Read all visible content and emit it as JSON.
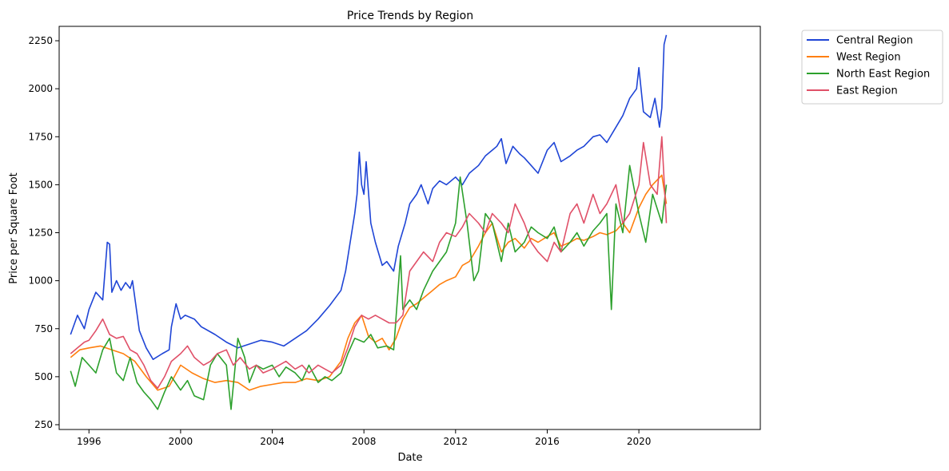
{
  "chart_data": {
    "type": "line",
    "title": "Price Trends by Region",
    "xlabel": "Date",
    "ylabel": "Price per Square Foot",
    "xlim": [
      1994.7,
      2025.3
    ],
    "ylim": [
      225,
      2325
    ],
    "x_ticks": [
      1996,
      2000,
      2004,
      2008,
      2012,
      2016,
      2020
    ],
    "x_tick_labels": [
      "1996",
      "2000",
      "2004",
      "2008",
      "2012",
      "2016",
      "2020"
    ],
    "y_ticks": [
      250,
      500,
      750,
      1000,
      1250,
      1500,
      1750,
      2000,
      2250
    ],
    "y_tick_labels": [
      "250",
      "500",
      "750",
      "1000",
      "1250",
      "1500",
      "1750",
      "2000",
      "2250"
    ],
    "grid": false,
    "legend": "outside top-right",
    "series": [
      {
        "name": "Central Region",
        "color": "#1f45d6",
        "x": [
          1995.2,
          1995.5,
          1995.8,
          1996.0,
          1996.3,
          1996.6,
          1996.8,
          1996.9,
          1997.0,
          1997.2,
          1997.4,
          1997.6,
          1997.8,
          1997.9,
          1998.2,
          1998.5,
          1998.8,
          1999.2,
          1999.5,
          1999.6,
          1999.8,
          2000.0,
          2000.2,
          2000.6,
          2000.9,
          2001.5,
          2002.0,
          2002.5,
          2003.0,
          2003.5,
          2004.0,
          2004.5,
          2005.0,
          2005.5,
          2006.0,
          2006.5,
          2007.0,
          2007.2,
          2007.4,
          2007.6,
          2007.7,
          2007.8,
          2007.9,
          2008.0,
          2008.1,
          2008.3,
          2008.5,
          2008.8,
          2009.0,
          2009.3,
          2009.5,
          2009.8,
          2010.0,
          2010.3,
          2010.5,
          2010.8,
          2011.0,
          2011.3,
          2011.6,
          2012.0,
          2012.3,
          2012.6,
          2013.0,
          2013.3,
          2013.6,
          2013.8,
          2014.0,
          2014.2,
          2014.5,
          2014.8,
          2015.0,
          2015.3,
          2015.6,
          2016.0,
          2016.3,
          2016.6,
          2017.0,
          2017.3,
          2017.6,
          2018.0,
          2018.3,
          2018.6,
          2019.0,
          2019.3,
          2019.6,
          2019.9,
          2020.0,
          2020.2,
          2020.5,
          2020.7,
          2020.9,
          2021.0,
          2021.1,
          2021.2
        ],
        "y": [
          720,
          820,
          750,
          850,
          940,
          900,
          1200,
          1190,
          940,
          1000,
          950,
          990,
          960,
          1000,
          740,
          650,
          590,
          620,
          640,
          760,
          880,
          800,
          820,
          800,
          760,
          720,
          680,
          650,
          670,
          690,
          680,
          660,
          700,
          740,
          800,
          870,
          950,
          1050,
          1200,
          1350,
          1450,
          1670,
          1500,
          1450,
          1620,
          1300,
          1200,
          1080,
          1100,
          1050,
          1180,
          1300,
          1400,
          1450,
          1500,
          1400,
          1480,
          1520,
          1500,
          1540,
          1500,
          1560,
          1600,
          1650,
          1680,
          1700,
          1740,
          1610,
          1700,
          1660,
          1640,
          1600,
          1560,
          1680,
          1720,
          1620,
          1650,
          1680,
          1700,
          1750,
          1760,
          1720,
          1800,
          1860,
          1950,
          2000,
          2110,
          1880,
          1850,
          1950,
          1800,
          1900,
          2230,
          2280
        ]
      },
      {
        "name": "West Region",
        "color": "#ff7f0e",
        "x": [
          1995.2,
          1995.6,
          1996.0,
          1996.5,
          1997.0,
          1997.5,
          1998.0,
          1998.5,
          1999.0,
          1999.5,
          2000.0,
          2000.5,
          2001.0,
          2001.5,
          2002.0,
          2002.5,
          2003.0,
          2003.5,
          2004.0,
          2004.5,
          2005.0,
          2005.5,
          2006.0,
          2006.5,
          2007.0,
          2007.3,
          2007.6,
          2007.9,
          2008.2,
          2008.5,
          2008.8,
          2009.1,
          2009.4,
          2009.7,
          2010.0,
          2010.3,
          2010.6,
          2011.0,
          2011.3,
          2011.6,
          2012.0,
          2012.3,
          2012.6,
          2013.0,
          2013.3,
          2013.6,
          2014.0,
          2014.3,
          2014.6,
          2015.0,
          2015.3,
          2015.6,
          2016.0,
          2016.3,
          2016.6,
          2017.0,
          2017.3,
          2017.6,
          2018.0,
          2018.3,
          2018.6,
          2019.0,
          2019.3,
          2019.6,
          2020.0,
          2020.3,
          2020.6,
          2021.0,
          2021.2
        ],
        "y": [
          600,
          640,
          650,
          660,
          640,
          620,
          580,
          500,
          430,
          450,
          560,
          520,
          490,
          470,
          480,
          470,
          430,
          450,
          460,
          470,
          470,
          490,
          480,
          500,
          580,
          700,
          780,
          820,
          710,
          680,
          700,
          640,
          700,
          800,
          860,
          880,
          910,
          950,
          980,
          1000,
          1020,
          1080,
          1100,
          1180,
          1250,
          1300,
          1150,
          1200,
          1220,
          1170,
          1220,
          1200,
          1230,
          1250,
          1180,
          1200,
          1220,
          1210,
          1230,
          1250,
          1240,
          1260,
          1300,
          1250,
          1380,
          1450,
          1500,
          1550,
          1400
        ]
      },
      {
        "name": "North East Region",
        "color": "#2ca02c",
        "x": [
          1995.2,
          1995.4,
          1995.7,
          1996.0,
          1996.3,
          1996.6,
          1996.9,
          1997.2,
          1997.5,
          1997.8,
          1998.1,
          1998.4,
          1998.7,
          1999.0,
          1999.3,
          1999.6,
          2000.0,
          2000.3,
          2000.6,
          2001.0,
          2001.3,
          2001.6,
          2002.0,
          2002.2,
          2002.5,
          2002.8,
          2003.0,
          2003.3,
          2003.6,
          2004.0,
          2004.3,
          2004.6,
          2005.0,
          2005.3,
          2005.6,
          2006.0,
          2006.3,
          2006.6,
          2007.0,
          2007.3,
          2007.6,
          2008.0,
          2008.3,
          2008.6,
          2009.0,
          2009.3,
          2009.6,
          2009.7,
          2010.0,
          2010.3,
          2010.6,
          2011.0,
          2011.3,
          2011.6,
          2012.0,
          2012.2,
          2012.5,
          2012.8,
          2013.0,
          2013.3,
          2013.6,
          2014.0,
          2014.3,
          2014.6,
          2015.0,
          2015.3,
          2015.6,
          2016.0,
          2016.3,
          2016.6,
          2017.0,
          2017.3,
          2017.6,
          2018.0,
          2018.3,
          2018.6,
          2018.8,
          2019.0,
          2019.3,
          2019.6,
          2020.0,
          2020.3,
          2020.6,
          2021.0,
          2021.2
        ],
        "y": [
          530,
          450,
          600,
          560,
          520,
          640,
          700,
          520,
          480,
          600,
          470,
          420,
          380,
          330,
          420,
          500,
          430,
          480,
          400,
          380,
          560,
          620,
          560,
          330,
          700,
          600,
          470,
          560,
          540,
          560,
          500,
          550,
          520,
          480,
          560,
          470,
          500,
          480,
          520,
          620,
          700,
          680,
          720,
          650,
          660,
          640,
          1130,
          850,
          900,
          850,
          950,
          1050,
          1100,
          1150,
          1300,
          1540,
          1300,
          1000,
          1050,
          1350,
          1300,
          1100,
          1300,
          1150,
          1200,
          1280,
          1250,
          1220,
          1280,
          1150,
          1200,
          1250,
          1180,
          1260,
          1300,
          1350,
          850,
          1400,
          1250,
          1600,
          1350,
          1200,
          1450,
          1300,
          1500
        ]
      },
      {
        "name": "East Region",
        "color": "#e05068",
        "x": [
          1995.2,
          1995.5,
          1995.8,
          1996.0,
          1996.3,
          1996.6,
          1996.9,
          1997.2,
          1997.5,
          1997.8,
          1998.1,
          1998.4,
          1998.7,
          1999.0,
          1999.3,
          1999.6,
          2000.0,
          2000.3,
          2000.6,
          2001.0,
          2001.3,
          2001.6,
          2002.0,
          2002.3,
          2002.6,
          2003.0,
          2003.3,
          2003.6,
          2004.0,
          2004.3,
          2004.6,
          2005.0,
          2005.3,
          2005.6,
          2006.0,
          2006.3,
          2006.6,
          2007.0,
          2007.3,
          2007.6,
          2007.9,
          2008.2,
          2008.5,
          2008.8,
          2009.1,
          2009.4,
          2009.7,
          2010.0,
          2010.3,
          2010.6,
          2011.0,
          2011.3,
          2011.6,
          2012.0,
          2012.3,
          2012.6,
          2013.0,
          2013.3,
          2013.6,
          2014.0,
          2014.3,
          2014.6,
          2015.0,
          2015.3,
          2015.6,
          2016.0,
          2016.3,
          2016.6,
          2017.0,
          2017.3,
          2017.6,
          2018.0,
          2018.3,
          2018.6,
          2019.0,
          2019.3,
          2019.6,
          2020.0,
          2020.2,
          2020.5,
          2020.8,
          2021.0,
          2021.2
        ],
        "y": [
          620,
          650,
          680,
          690,
          740,
          800,
          720,
          700,
          710,
          640,
          620,
          560,
          480,
          440,
          500,
          580,
          620,
          660,
          600,
          560,
          580,
          620,
          640,
          560,
          600,
          540,
          560,
          520,
          540,
          560,
          580,
          540,
          560,
          520,
          560,
          540,
          520,
          560,
          650,
          760,
          820,
          800,
          820,
          800,
          780,
          780,
          820,
          1050,
          1100,
          1150,
          1100,
          1200,
          1250,
          1230,
          1280,
          1350,
          1300,
          1250,
          1350,
          1300,
          1250,
          1400,
          1300,
          1200,
          1150,
          1100,
          1200,
          1150,
          1350,
          1400,
          1300,
          1450,
          1350,
          1400,
          1500,
          1300,
          1350,
          1500,
          1720,
          1500,
          1450,
          1750,
          1300
        ]
      }
    ]
  }
}
